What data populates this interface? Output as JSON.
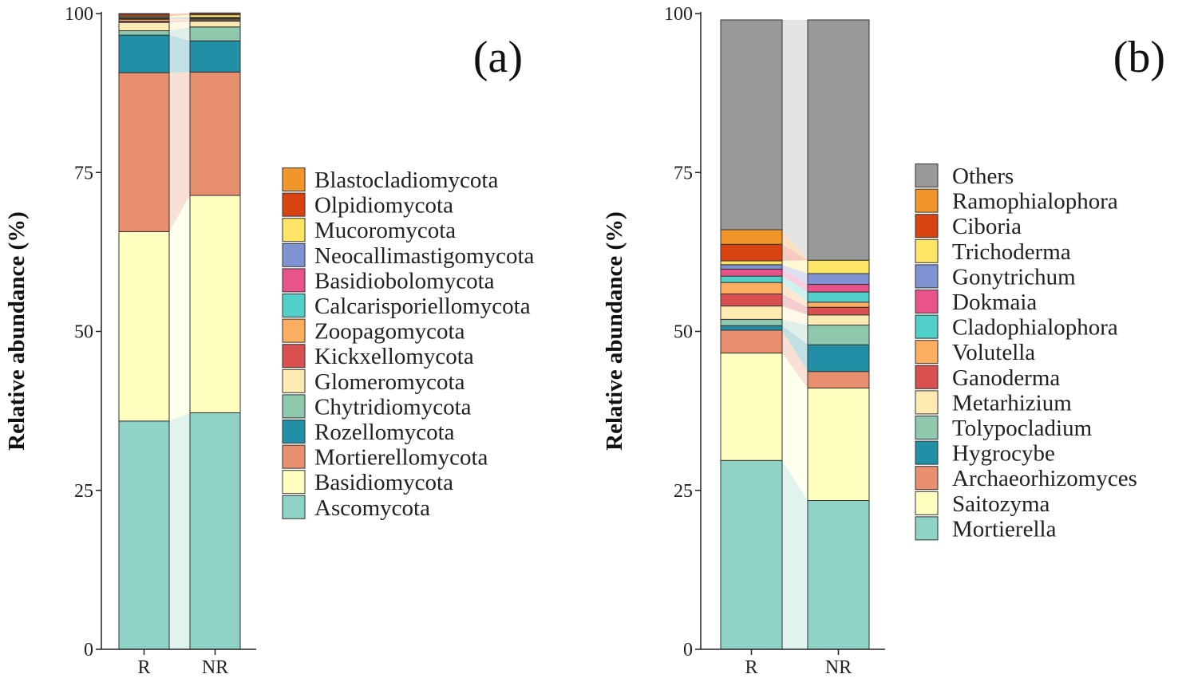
{
  "chart_data": [
    {
      "panel": "a",
      "type": "stacked-bar",
      "ylabel": "Relative abundance (%)",
      "ylim": [
        0,
        100
      ],
      "yticks": [
        "0",
        "25",
        "50",
        "75",
        "100"
      ],
      "categories": [
        "R",
        "NR"
      ],
      "panel_label": "(a)",
      "series": [
        {
          "name": "Ascomycota",
          "color": "#8ed3c6",
          "values": [
            35.9,
            37.2
          ]
        },
        {
          "name": "Basidiomycota",
          "color": "#ffffbf",
          "values": [
            29.8,
            34.2
          ]
        },
        {
          "name": "Mortierellomycota",
          "color": "#e78f6e",
          "values": [
            25.0,
            19.4
          ]
        },
        {
          "name": "Rozellomycota",
          "color": "#2190a6",
          "values": [
            5.9,
            4.9
          ]
        },
        {
          "name": "Chytridiomycota",
          "color": "#8fc9ad",
          "values": [
            0.7,
            2.2
          ]
        },
        {
          "name": "Glomeromycota",
          "color": "#ffeab2",
          "values": [
            1.3,
            0.9
          ]
        },
        {
          "name": "Kickxellomycota",
          "color": "#d85050",
          "values": [
            0.2,
            0.1
          ]
        },
        {
          "name": "Zoopagomycota",
          "color": "#fdae61",
          "values": [
            0.3,
            0.2
          ]
        },
        {
          "name": "Calcarisporiellomycota",
          "color": "#50d0c8",
          "values": [
            0.1,
            0.1
          ]
        },
        {
          "name": "Basidiobolomycota",
          "color": "#e7538a",
          "values": [
            0.1,
            0.1
          ]
        },
        {
          "name": "Neocallimastigomycota",
          "color": "#7f93d2",
          "values": [
            0.1,
            0.1
          ]
        },
        {
          "name": "Mucoromycota",
          "color": "#ffe566",
          "values": [
            0.2,
            0.4
          ]
        },
        {
          "name": "Olpidiomycota",
          "color": "#d94312",
          "values": [
            0.3,
            0.2
          ]
        },
        {
          "name": "Blastocladiomycota",
          "color": "#f0962a",
          "values": [
            0.1,
            0.1
          ]
        }
      ]
    },
    {
      "panel": "b",
      "type": "stacked-bar",
      "ylabel": "Relative abundance (%)",
      "ylim": [
        0,
        100
      ],
      "yticks": [
        "0",
        "25",
        "50",
        "75",
        "100"
      ],
      "categories": [
        "R",
        "NR"
      ],
      "panel_label": "(b)",
      "series": [
        {
          "name": "Mortierella",
          "color": "#8ed3c6",
          "values": [
            29.7,
            23.4
          ]
        },
        {
          "name": "Saitozyma",
          "color": "#ffffbf",
          "values": [
            16.9,
            17.7
          ]
        },
        {
          "name": "Archaeorhizomyces",
          "color": "#e78f6e",
          "values": [
            3.6,
            2.6
          ]
        },
        {
          "name": "Hygrocybe",
          "color": "#2190a6",
          "values": [
            0.7,
            4.2
          ]
        },
        {
          "name": "Tolypocladium",
          "color": "#8fc9ad",
          "values": [
            1.0,
            3.1
          ]
        },
        {
          "name": "Metarhizium",
          "color": "#ffeab2",
          "values": [
            2.1,
            1.6
          ]
        },
        {
          "name": "Ganoderma",
          "color": "#d85050",
          "values": [
            1.9,
            1.2
          ]
        },
        {
          "name": "Volutella",
          "color": "#fdae61",
          "values": [
            1.8,
            0.8
          ]
        },
        {
          "name": "Cladophialophora",
          "color": "#50d0c8",
          "values": [
            1.0,
            1.6
          ]
        },
        {
          "name": "Dokmaia",
          "color": "#e7538a",
          "values": [
            1.1,
            1.2
          ]
        },
        {
          "name": "Gonytrichum",
          "color": "#7f93d2",
          "values": [
            0.7,
            1.7
          ]
        },
        {
          "name": "Trichoderma",
          "color": "#ffe566",
          "values": [
            0.6,
            2.1
          ]
        },
        {
          "name": "Ciboria",
          "color": "#d94312",
          "values": [
            2.6,
            0.0
          ]
        },
        {
          "name": "Ramophialophora",
          "color": "#f0962a",
          "values": [
            2.3,
            0.0
          ]
        },
        {
          "name": "Others",
          "color": "#999999",
          "values": [
            33.0,
            37.8
          ]
        }
      ]
    }
  ]
}
